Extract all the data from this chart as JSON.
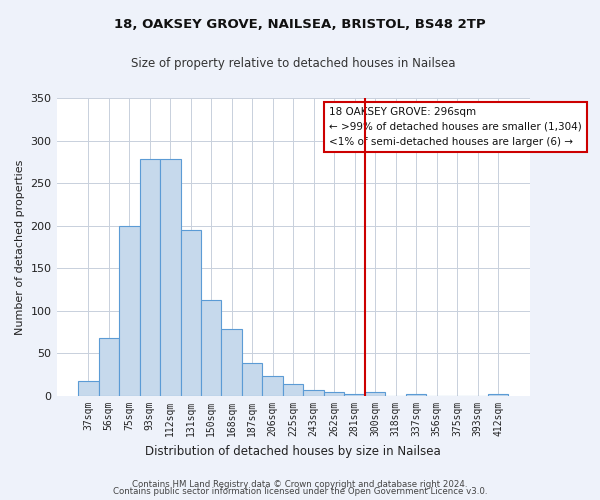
{
  "title": "18, OAKSEY GROVE, NAILSEA, BRISTOL, BS48 2TP",
  "subtitle": "Size of property relative to detached houses in Nailsea",
  "xlabel": "Distribution of detached houses by size in Nailsea",
  "ylabel": "Number of detached properties",
  "bar_color": "#c6d9ec",
  "bar_edge_color": "#5b9bd5",
  "categories": [
    "37sqm",
    "56sqm",
    "75sqm",
    "93sqm",
    "112sqm",
    "131sqm",
    "150sqm",
    "168sqm",
    "187sqm",
    "206sqm",
    "225sqm",
    "243sqm",
    "262sqm",
    "281sqm",
    "300sqm",
    "318sqm",
    "337sqm",
    "356sqm",
    "375sqm",
    "393sqm",
    "412sqm"
  ],
  "values": [
    18,
    68,
    200,
    278,
    278,
    195,
    113,
    79,
    39,
    24,
    14,
    7,
    5,
    2,
    5,
    0,
    2,
    0,
    0,
    0,
    2
  ],
  "vline_x_idx": 14,
  "vline_color": "#cc0000",
  "annotation_title": "18 OAKSEY GROVE: 296sqm",
  "annotation_line1": "← >99% of detached houses are smaller (1,304)",
  "annotation_line2": "<1% of semi-detached houses are larger (6) →",
  "annotation_box_edge": "#cc0000",
  "ylim": [
    0,
    350
  ],
  "yticks": [
    0,
    50,
    100,
    150,
    200,
    250,
    300,
    350
  ],
  "footer1": "Contains HM Land Registry data © Crown copyright and database right 2024.",
  "footer2": "Contains public sector information licensed under the Open Government Licence v3.0.",
  "fig_bg_color": "#eef2fa",
  "plot_bg_color": "#ffffff",
  "grid_color": "#c8d0dc"
}
